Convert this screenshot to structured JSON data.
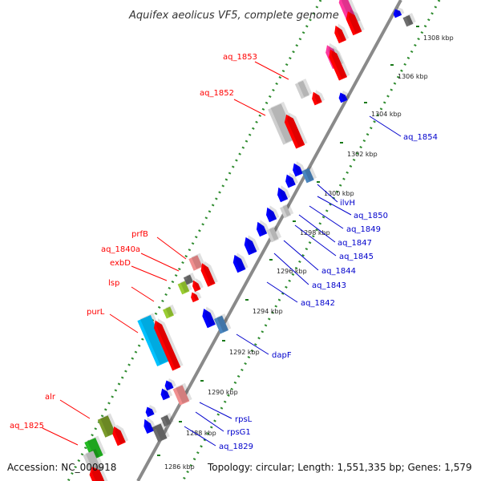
{
  "title": "Aquifex aeolicus VF5, complete genome",
  "footer": {
    "accession": "Accession: NC_000918",
    "topology": "Topology: circular; Length: 1,551,335 bp; Genes: 1,579"
  },
  "colors": {
    "backbone": "#8a8a8a",
    "dots": "#2e8b2e",
    "reverse_label": "#ff0000",
    "forward_label": "#0000cc",
    "red": "#ff0000",
    "pink": "#ff3aa0",
    "light_pink": "#f08f8f",
    "light_gray": "#cfcfcf",
    "gray": "#6e6e6e",
    "blue": "#0000ff",
    "steel_blue": "#4a86c0",
    "cyan": "#00c2ff",
    "olive": "#7a9b2a",
    "yellow_green": "#9acd32",
    "green": "#22bb22"
  },
  "ticks": [
    {
      "label": "1286 kbp"
    },
    {
      "label": "1288 kbp"
    },
    {
      "label": "1290 kbp"
    },
    {
      "label": "1292 kbp"
    },
    {
      "label": "1294 kbp"
    },
    {
      "label": "1296 kbp"
    },
    {
      "label": "1298 kbp"
    },
    {
      "label": "1300 kbp"
    },
    {
      "label": "1302 kbp"
    },
    {
      "label": "1304 kbp"
    },
    {
      "label": "1306 kbp"
    },
    {
      "label": "1308 kbp"
    }
  ],
  "reverse_labels": [
    "aq_1853",
    "aq_1852",
    "prfB",
    "aq_1840a",
    "exbD",
    "lsp",
    "purL",
    "alr",
    "aq_1825"
  ],
  "forward_labels": [
    "aq_1854",
    "ilvH",
    "aq_1850",
    "aq_1849",
    "aq_1847",
    "aq_1845",
    "aq_1844",
    "aq_1843",
    "aq_1842",
    "dapF",
    "rpsL",
    "rpsG1",
    "aq_1829"
  ]
}
